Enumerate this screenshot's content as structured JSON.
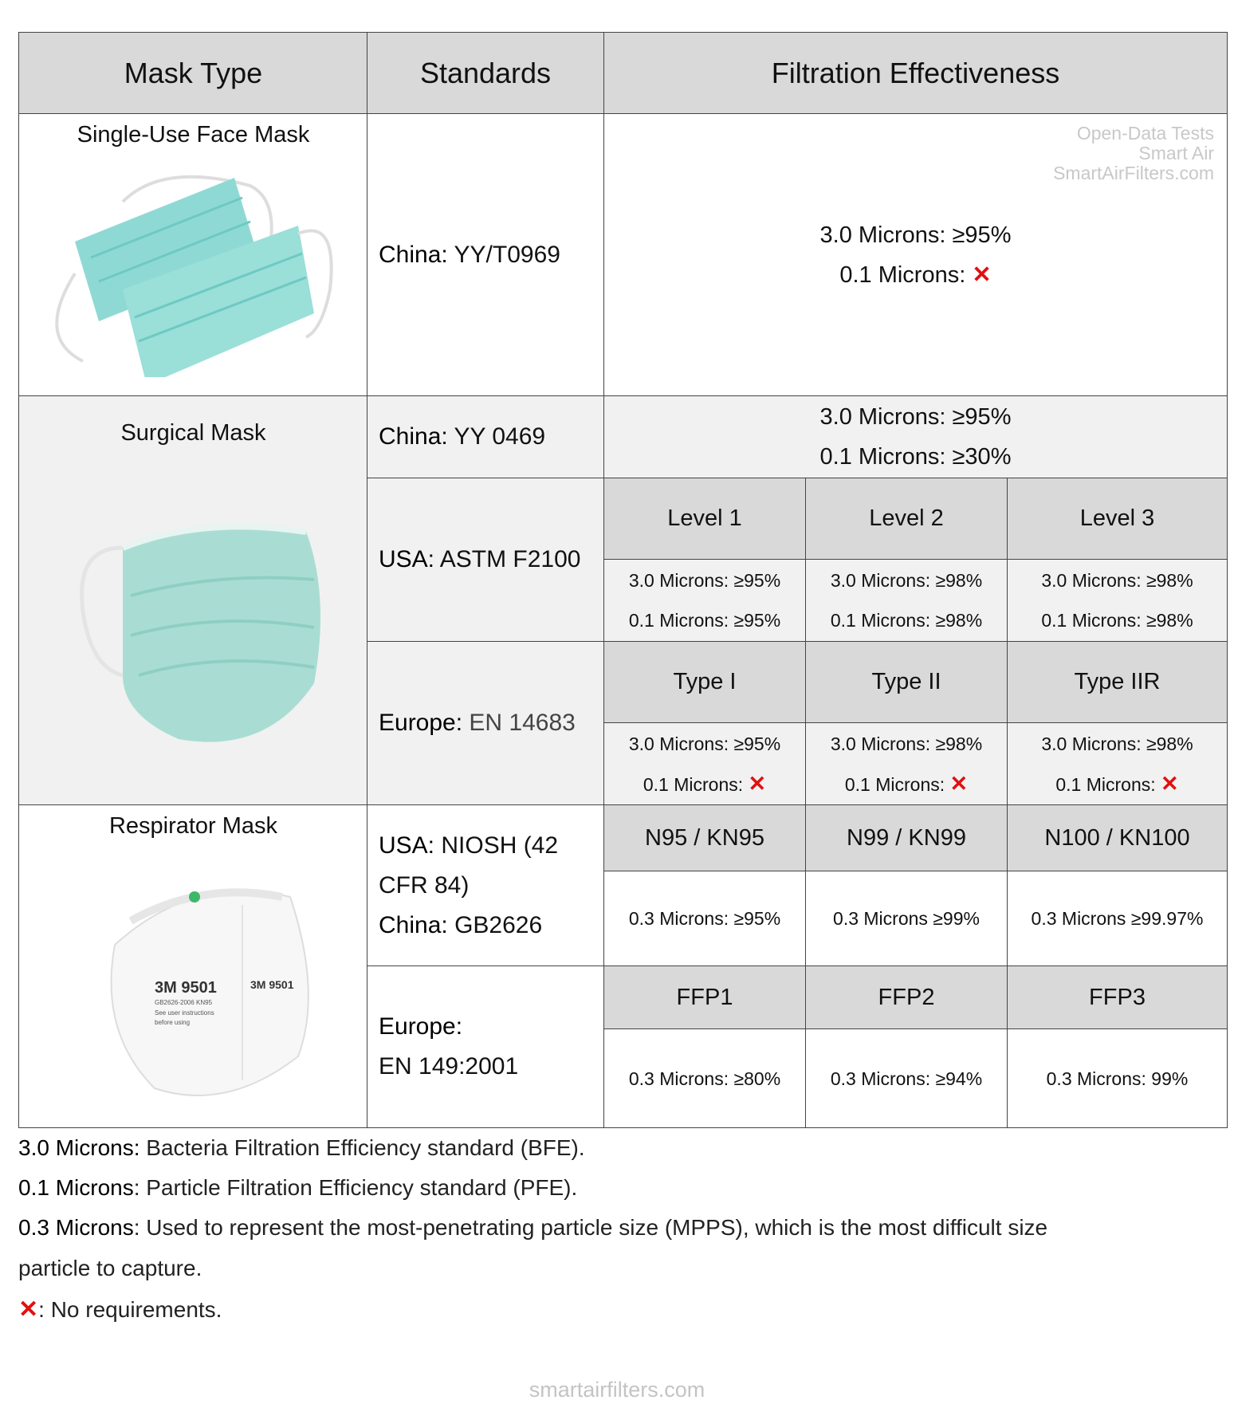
{
  "header": {
    "mask_type": "Mask Type",
    "standards": "Standards",
    "filtration": "Filtration Effectiveness"
  },
  "watermark": [
    "Open-Data Tests",
    "Smart Air",
    "SmartAirFilters.com"
  ],
  "no_req_icon": "red-x-icon",
  "colors": {
    "header_bg": "#d9d9d9",
    "row_gray": "#f1f1f1",
    "x_red": "#e01010"
  },
  "single_use": {
    "title": "Single-Use Face Mask",
    "std_label": "China:",
    "std_value": "YY/T0969",
    "line1": "3.0 Microns: ≥95%",
    "line2": "0.1 Microns:"
  },
  "surgical": {
    "title": "Surgical Mask",
    "china": {
      "label": "China:",
      "value": "YY 0469",
      "line1": "3.0 Microns: ≥95%",
      "line2": "0.1 Microns: ≥30%"
    },
    "usa": {
      "label": "USA:",
      "value": "ASTM F2100",
      "cols": [
        {
          "name": "Level 1",
          "l1": "3.0 Microns: ≥95%",
          "l2": "0.1 Microns: ≥95%"
        },
        {
          "name": "Level 2",
          "l1": "3.0 Microns: ≥98%",
          "l2": "0.1 Microns: ≥98%"
        },
        {
          "name": "Level 3",
          "l1": "3.0 Microns: ≥98%",
          "l2": "0.1 Microns: ≥98%"
        }
      ]
    },
    "europe": {
      "label": "Europe:",
      "value": "EN 14683",
      "cols": [
        {
          "name": "Type I",
          "l1": "3.0 Microns: ≥95%",
          "l2": "0.1 Microns:"
        },
        {
          "name": "Type II",
          "l1": "3.0 Microns: ≥98%",
          "l2": "0.1 Microns:"
        },
        {
          "name": "Type IIR",
          "l1": "3.0 Microns: ≥98%",
          "l2": "0.1 Microns:"
        }
      ]
    }
  },
  "respirator": {
    "title": "Respirator Mask",
    "image_text": [
      "3M 9501",
      "GB2626-2006 KN95",
      "See user instructions",
      "before using"
    ],
    "niosh": {
      "label1": "USA:",
      "value1": "NIOSH (42",
      "value1b": "CFR 84)",
      "label2": "China:",
      "value2": "GB2626",
      "cols": [
        {
          "name": "N95 / KN95",
          "val": "0.3 Microns: ≥95%"
        },
        {
          "name": "N99 / KN99",
          "val": "0.3 Microns ≥99%"
        },
        {
          "name": "N100 / KN100",
          "val": "0.3 Microns ≥99.97%"
        }
      ]
    },
    "europe": {
      "label": "Europe:",
      "value": "EN 149:2001",
      "cols": [
        {
          "name": "FFP1",
          "val": "0.3 Microns: ≥80%"
        },
        {
          "name": "FFP2",
          "val": "0.3 Microns: ≥94%"
        },
        {
          "name": "FFP3",
          "val": "0.3 Microns: 99%"
        }
      ]
    }
  },
  "notes": [
    {
      "term": "3.0 Microns:",
      "text": " Bacteria Filtration Efficiency standard (BFE)."
    },
    {
      "term": "0.1 Microns",
      "text": ": Particle Filtration Efficiency standard (PFE)."
    },
    {
      "term": "0.3 Microns",
      "text": ": Used to represent the most-penetrating particle size (MPPS), which is the most difficult size"
    },
    {
      "term": "",
      "text": "particle to capture."
    },
    {
      "term": "",
      "text": ": No requirements."
    }
  ],
  "footer": "smartairfilters.com"
}
